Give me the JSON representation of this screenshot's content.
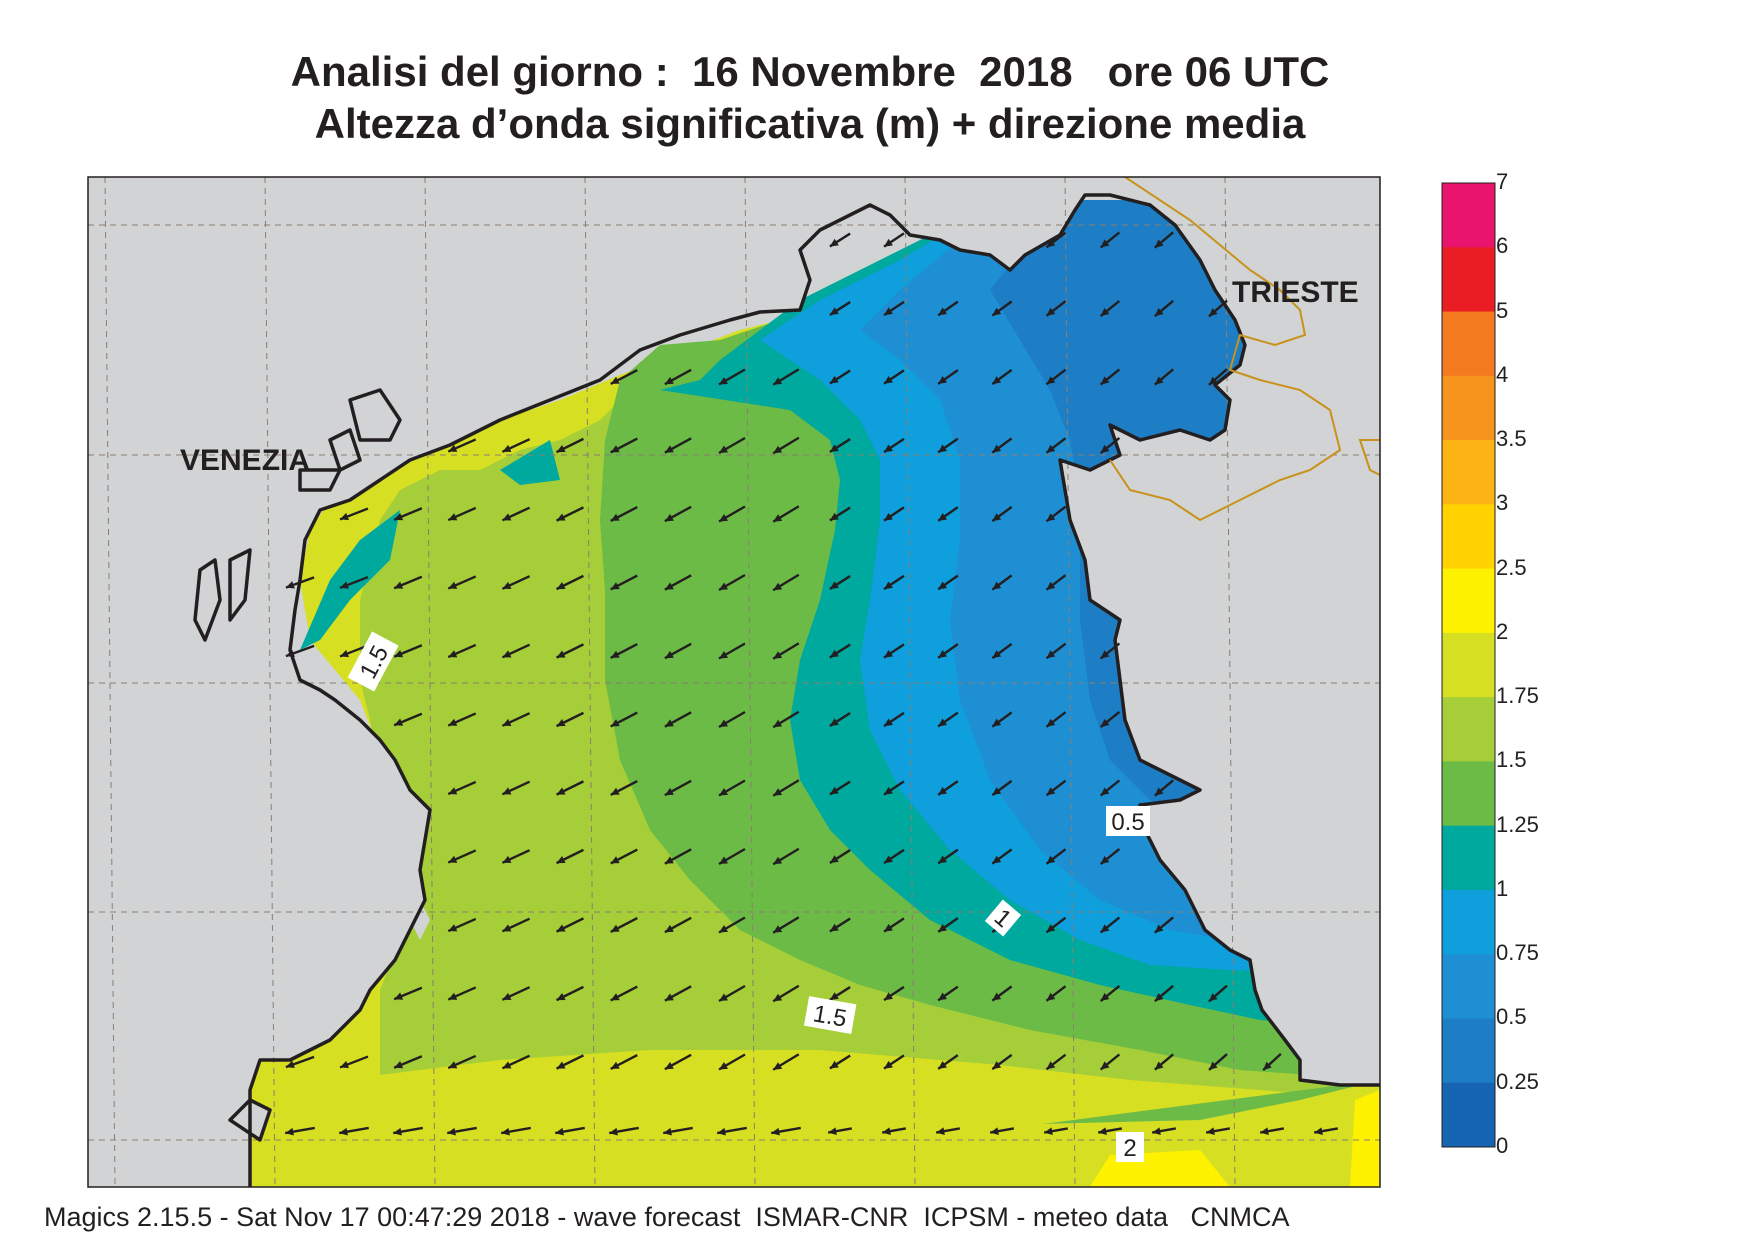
{
  "title": {
    "line1": "Analisi del giorno :  16 Novembre  2018   ore 06 UTC",
    "line2": "Altezza d’onda significativa (m) + direzione media"
  },
  "footer": "Magics 2.15.5 - Sat Nov 17 00:47:29 2018 - wave forecast  ISMAR-CNR  ICPSM - meteo data   CNMCA",
  "cities": {
    "venezia": "VENEZIA",
    "trieste": "TRIESTE"
  },
  "contour_labels": [
    "1.5",
    "0.5",
    "1",
    "1.5",
    "2"
  ],
  "legend": {
    "labels": [
      "7",
      "6",
      "5",
      "4",
      "3.5",
      "3",
      "2.5",
      "2",
      "1.75",
      "1.5",
      "1.25",
      "1",
      "0.75",
      "0.5",
      "0.25",
      "0"
    ],
    "colors": [
      "#e8146e",
      "#ea1c24",
      "#f47a20",
      "#f7941d",
      "#fbb414",
      "#ffd200",
      "#fff200",
      "#d7df23",
      "#a6ce39",
      "#6cbb46",
      "#00a99d",
      "#0e9fdc",
      "#1f8fd4",
      "#1d7dc5",
      "#1565b3"
    ]
  },
  "colors": {
    "land": "#d1d3d4",
    "coast": "#231f20",
    "border": "#c8921a",
    "grid": "#8a7f70",
    "arrow": "#231f20"
  }
}
